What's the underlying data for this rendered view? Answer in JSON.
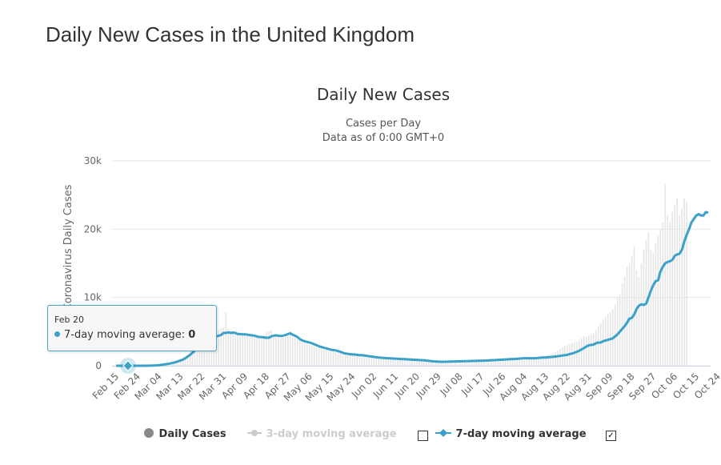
{
  "page": {
    "title": "Daily New Cases in the United Kingdom"
  },
  "chart_data": {
    "type": "bar",
    "title": "Daily New Cases",
    "subtitle_1": "Cases per Day",
    "subtitle_2": "Data as of 0:00 GMT+0",
    "ylabel": "Novel Coronavirus Daily Cases",
    "xlabel": "",
    "ylim": [
      0,
      30000
    ],
    "y_ticks": [
      "0",
      "10k",
      "20k",
      "30k"
    ],
    "y_tick_values": [
      0,
      10000,
      20000,
      30000
    ],
    "x_tick_labels": [
      "Feb 15",
      "Feb 24",
      "Mar 04",
      "Mar 13",
      "Mar 22",
      "Mar 31",
      "Apr 09",
      "Apr 18",
      "Apr 27",
      "May 06",
      "May 15",
      "May 24",
      "Jun 02",
      "Jun 11",
      "Jun 20",
      "Jun 29",
      "Jul 08",
      "Jul 17",
      "Jul 26",
      "Aug 04",
      "Aug 13",
      "Aug 22",
      "Aug 31",
      "Sep 09",
      "Sep 18",
      "Sep 27",
      "Oct 06",
      "Oct 15",
      "Oct 24"
    ],
    "grid": true,
    "legend_position": "bottom",
    "x_start": "Feb 15",
    "series": [
      {
        "name": "7-day moving average",
        "kind": "line",
        "color": "#3ba1c9",
        "values": [
          0,
          0,
          0,
          0,
          0,
          0,
          0,
          0,
          0,
          0,
          0,
          0,
          0,
          10,
          20,
          30,
          40,
          60,
          90,
          130,
          180,
          230,
          290,
          360,
          440,
          540,
          650,
          770,
          900,
          1100,
          1350,
          1600,
          1900,
          2200,
          2500,
          2800,
          3100,
          3400,
          3650,
          3900,
          4050,
          4200,
          4300,
          4400,
          4500,
          4800,
          4800,
          4900,
          4800,
          4850,
          4800,
          4650,
          4650,
          4600,
          4600,
          4550,
          4500,
          4450,
          4400,
          4300,
          4200,
          4200,
          4150,
          4100,
          4100,
          4300,
          4400,
          4450,
          4400,
          4350,
          4400,
          4500,
          4650,
          4750,
          4550,
          4400,
          4200,
          3900,
          3700,
          3600,
          3500,
          3400,
          3300,
          3150,
          3000,
          2850,
          2750,
          2650,
          2550,
          2450,
          2350,
          2300,
          2250,
          2150,
          2050,
          1900,
          1800,
          1750,
          1700,
          1650,
          1650,
          1600,
          1550,
          1550,
          1500,
          1450,
          1400,
          1350,
          1300,
          1250,
          1200,
          1180,
          1150,
          1130,
          1100,
          1080,
          1060,
          1040,
          1020,
          1000,
          980,
          960,
          940,
          920,
          900,
          880,
          860,
          840,
          820,
          800,
          760,
          720,
          680,
          650,
          630,
          600,
          590,
          580,
          590,
          600,
          610,
          620,
          630,
          640,
          650,
          660,
          670,
          680,
          690,
          700,
          710,
          720,
          730,
          740,
          750,
          760,
          780,
          800,
          820,
          840,
          860,
          880,
          900,
          920,
          940,
          960,
          980,
          1000,
          1020,
          1050,
          1080,
          1100,
          1100,
          1100,
          1100,
          1100,
          1120,
          1150,
          1180,
          1200,
          1220,
          1250,
          1280,
          1300,
          1350,
          1400,
          1450,
          1500,
          1550,
          1600,
          1700,
          1800,
          1900,
          2050,
          2200,
          2400,
          2600,
          2800,
          3000,
          3050,
          3100,
          3300,
          3400,
          3400,
          3600,
          3700,
          3800,
          3900,
          4000,
          4300,
          4600,
          5000,
          5400,
          5800,
          6300,
          6900,
          7000,
          7500,
          8300,
          8800,
          9000,
          8900,
          9100,
          10000,
          11000,
          11800,
          12400,
          12500,
          13800,
          14500,
          15000,
          15200,
          15300,
          15500,
          16100,
          16300,
          16400,
          17000,
          18200,
          19200,
          20000,
          21000,
          21500,
          22000,
          22200,
          22000,
          22000,
          22500,
          22400
        ]
      },
      {
        "name": "Daily Cases",
        "kind": "bar",
        "color": "#e6e6e6",
        "values": [
          0,
          0,
          0,
          0,
          0,
          0,
          0,
          0,
          0,
          0,
          0,
          0,
          0,
          20,
          40,
          60,
          80,
          100,
          140,
          180,
          220,
          300,
          360,
          440,
          520,
          650,
          760,
          890,
          1050,
          1300,
          1600,
          1900,
          2200,
          2500,
          2800,
          3100,
          3500,
          3800,
          4100,
          4400,
          4600,
          4700,
          4900,
          5200,
          5500,
          5600,
          7800,
          5500,
          5000,
          5100,
          4900,
          4700,
          4800,
          4600,
          4500,
          4400,
          4600,
          4400,
          4300,
          4200,
          4100,
          4400,
          4500,
          4900,
          5100,
          5200,
          4600,
          4300,
          4200,
          4000,
          4100,
          4200,
          4400,
          5000,
          4400,
          4100,
          3900,
          3600,
          3400,
          3300,
          3200,
          3100,
          3000,
          2900,
          2700,
          2600,
          2500,
          2400,
          2300,
          2200,
          2100,
          2100,
          2000,
          1950,
          1900,
          1800,
          1700,
          1650,
          1600,
          1550,
          1550,
          1500,
          1450,
          1450,
          1400,
          1350,
          1300,
          1250,
          1200,
          1150,
          1150,
          1100,
          1100,
          1050,
          1050,
          1000,
          1000,
          950,
          950,
          900,
          900,
          850,
          850,
          800,
          800,
          780,
          760,
          720,
          700,
          650,
          600,
          580,
          560,
          560,
          560,
          580,
          600,
          620,
          640,
          660,
          660,
          680,
          700,
          700,
          720,
          720,
          740,
          760,
          780,
          800,
          800,
          820,
          840,
          860,
          880,
          900,
          920,
          950,
          980,
          1000,
          1020,
          1040,
          1060,
          1080,
          1100,
          1120,
          1150,
          1200,
          1200,
          1150,
          1100,
          1150,
          1200,
          1250,
          1250,
          1300,
          1350,
          1400,
          1450,
          1500,
          1550,
          1650,
          1700,
          1850,
          2000,
          2200,
          2400,
          2650,
          2900,
          3000,
          3200,
          3300,
          3400,
          3500,
          3700,
          4000,
          4300,
          4200,
          4400,
          4500,
          4800,
          5200,
          5800,
          6200,
          6800,
          7200,
          7600,
          7800,
          8200,
          9000,
          10000,
          10500,
          12000,
          13000,
          14500,
          15000,
          16000,
          17500,
          14000,
          13000,
          15000,
          17000,
          18500,
          19500,
          17000,
          16500,
          18000,
          19000,
          20000,
          21000,
          26500,
          22000,
          21000,
          22500,
          23500,
          24500,
          22000,
          23000,
          24500,
          24000
        ]
      },
      {
        "name": "3-day moving average",
        "kind": "line",
        "color": "#cccccc",
        "visible": false,
        "values": []
      }
    ],
    "tooltip": {
      "date": "Feb 20",
      "series": "7-day moving average",
      "label": "7-day moving average:",
      "value": "0",
      "index": 5
    },
    "legend": [
      {
        "label": "Daily Cases",
        "marker": "circle",
        "color": "#888888",
        "enabled": true,
        "checkbox": false
      },
      {
        "label": "3-day moving average",
        "marker": "line-dot",
        "color": "#cccccc",
        "enabled": false,
        "checkbox": true,
        "checked": false
      },
      {
        "label": "7-day moving average",
        "marker": "line-diamond",
        "color": "#3ba1c9",
        "enabled": true,
        "checkbox": true,
        "checked": true
      }
    ]
  }
}
